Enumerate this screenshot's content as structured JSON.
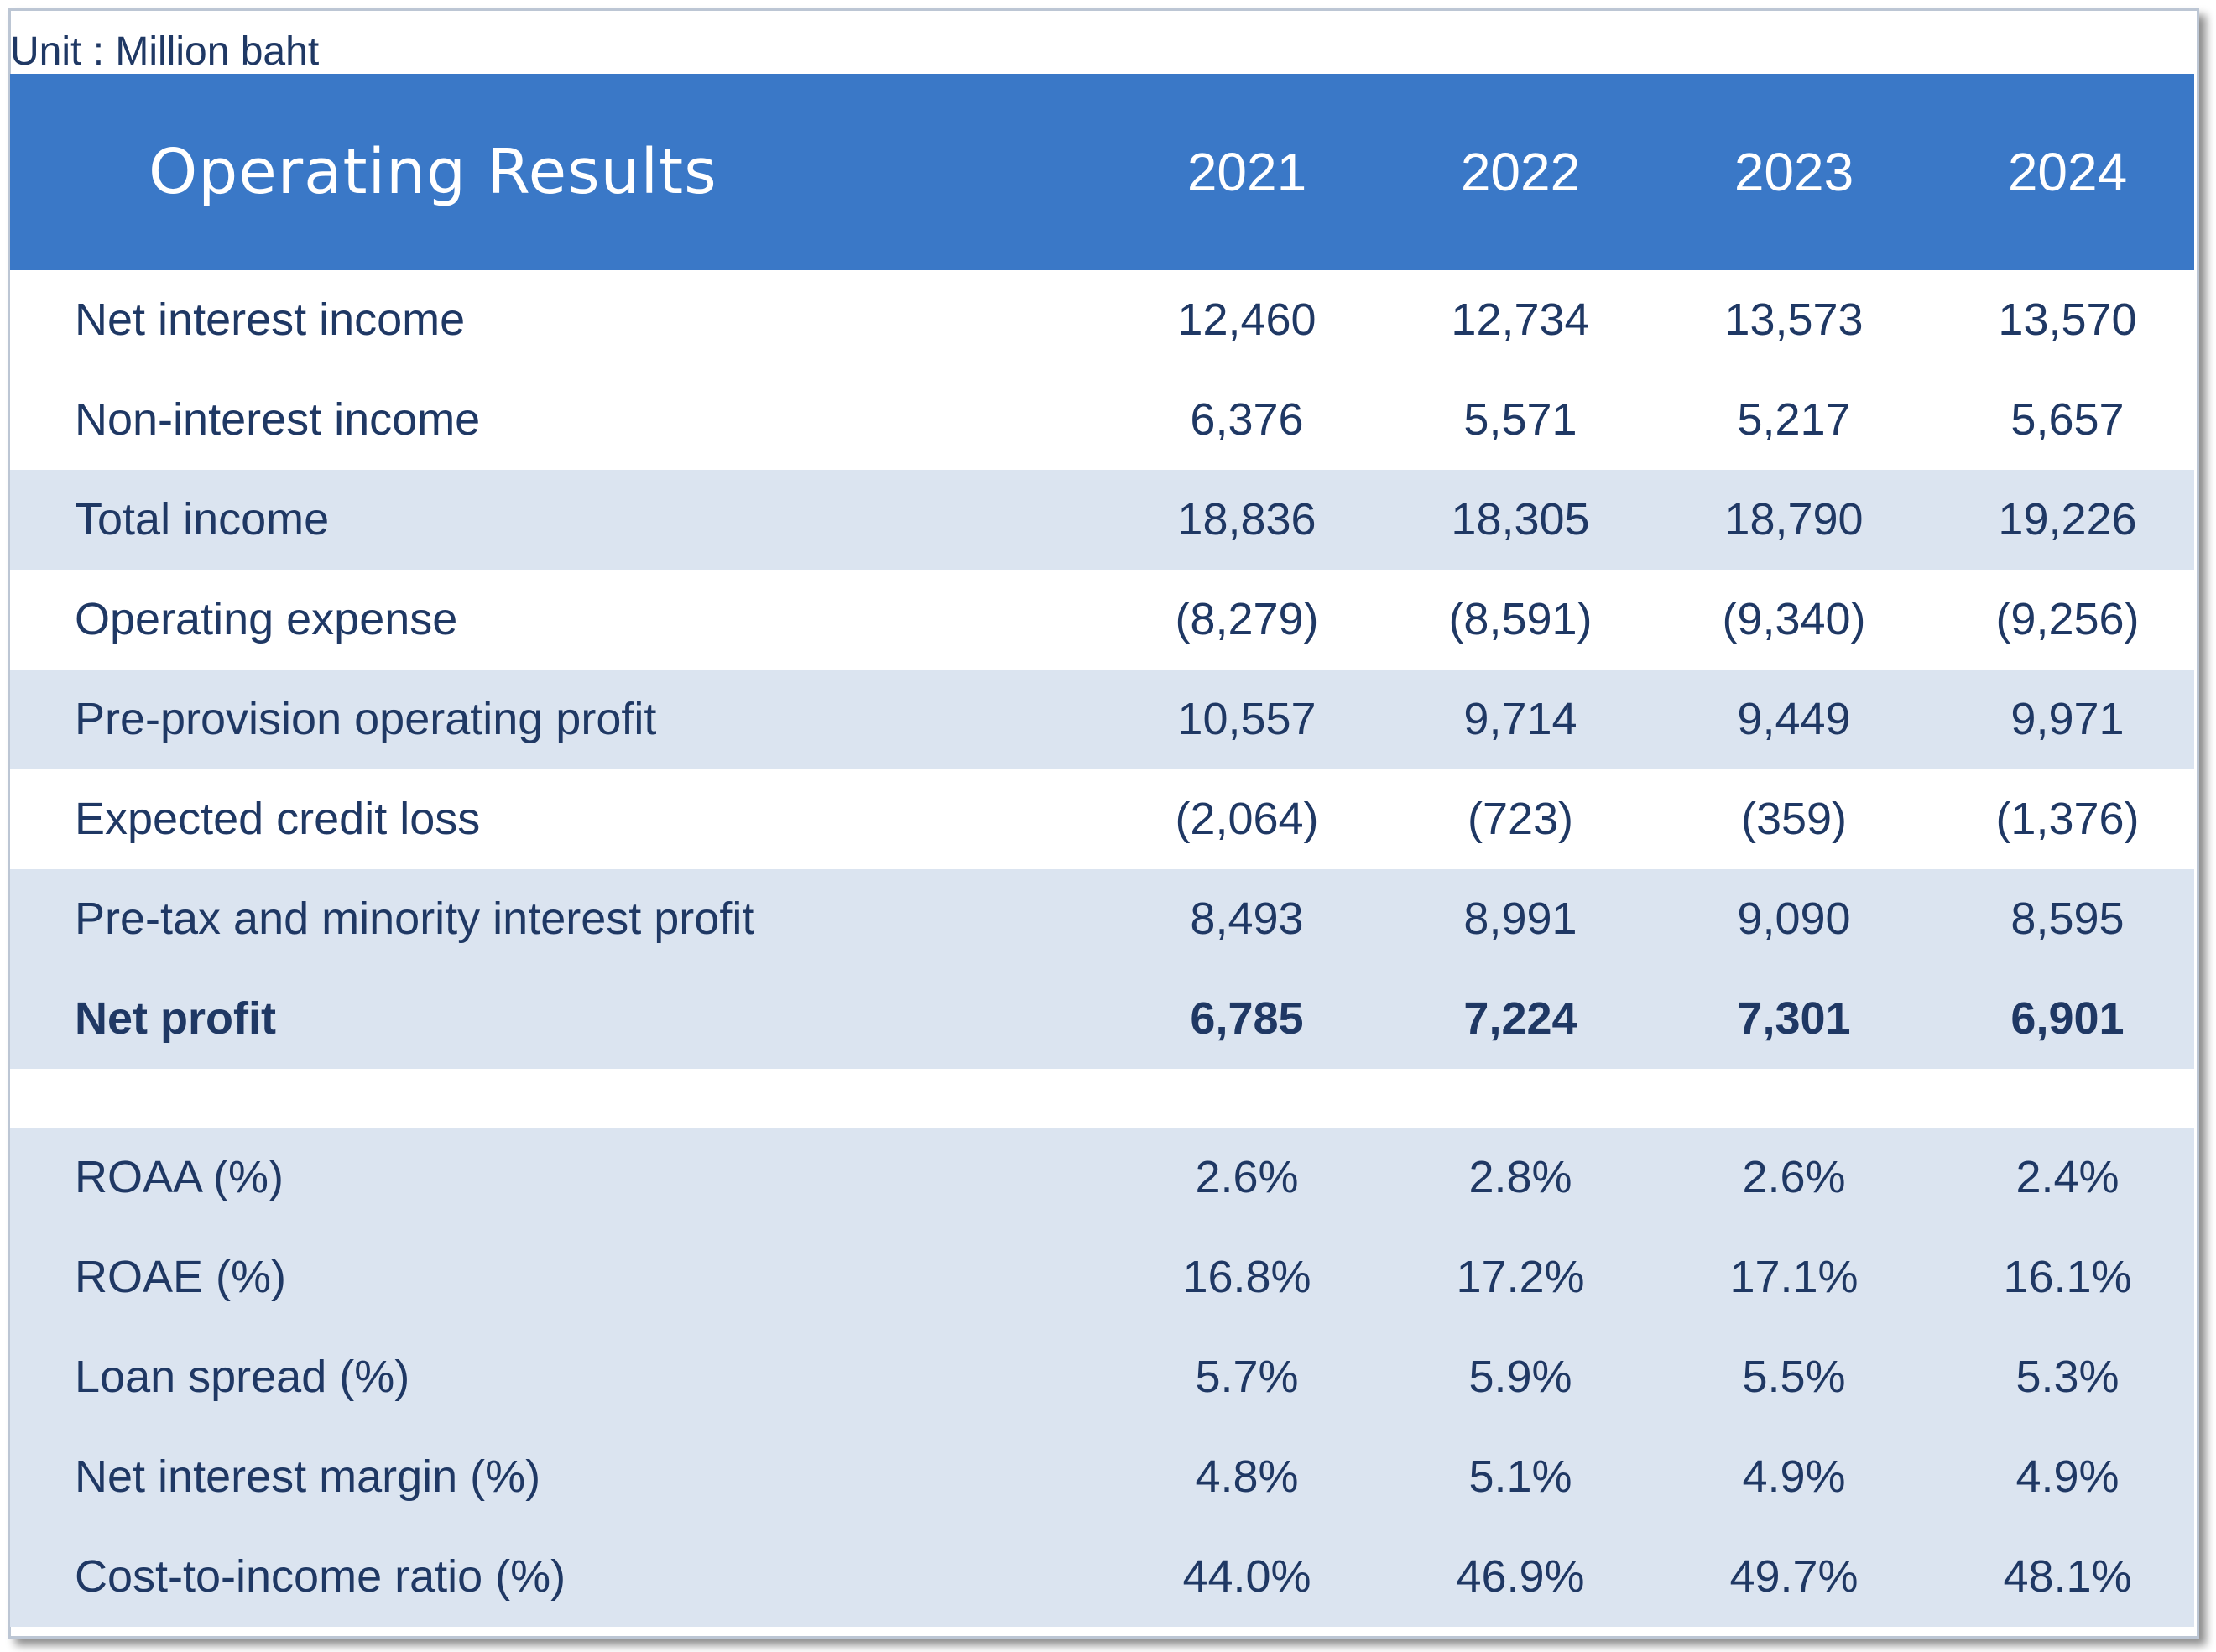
{
  "unit_label": "Unit : Million baht",
  "table": {
    "title": "Operating Results",
    "years": [
      "2021",
      "2022",
      "2023",
      "2024"
    ],
    "rows": [
      {
        "label": "Net interest income",
        "values": [
          "12,460",
          "12,734",
          "13,573",
          "13,570"
        ]
      },
      {
        "label": "Non-interest income",
        "values": [
          "6,376",
          "5,571",
          "5,217",
          "5,657"
        ]
      },
      {
        "label": "Total income",
        "values": [
          "18,836",
          "18,305",
          "18,790",
          "19,226"
        ]
      },
      {
        "label": "Operating expense",
        "values": [
          "(8,279)",
          "(8,591)",
          "(9,340)",
          "(9,256)"
        ]
      },
      {
        "label": "Pre-provision operating profit",
        "values": [
          "10,557",
          "9,714",
          "9,449",
          "9,971"
        ]
      },
      {
        "label": "Expected credit loss",
        "values": [
          "(2,064)",
          "(723)",
          "(359)",
          "(1,376)"
        ]
      },
      {
        "label": "Pre-tax and minority interest profit",
        "values": [
          "8,493",
          "8,991",
          "9,090",
          "8,595"
        ]
      },
      {
        "label": "Net profit",
        "values": [
          "6,785",
          "7,224",
          "7,301",
          "6,901"
        ]
      }
    ],
    "ratios": [
      {
        "label": "ROAA (%)",
        "values": [
          "2.6%",
          "2.8%",
          "2.6%",
          "2.4%"
        ]
      },
      {
        "label": "ROAE (%)",
        "values": [
          "16.8%",
          "17.2%",
          "17.1%",
          "16.1%"
        ]
      },
      {
        "label": "Loan spread (%)",
        "values": [
          "5.7%",
          "5.9%",
          "5.5%",
          "5.3%"
        ]
      },
      {
        "label": "Net interest margin (%)",
        "values": [
          "4.8%",
          "5.1%",
          "4.9%",
          "4.9%"
        ]
      },
      {
        "label": "Cost-to-income ratio (%)",
        "values": [
          "44.0%",
          "46.9%",
          "49.7%",
          "48.1%"
        ]
      }
    ]
  },
  "colors": {
    "header_bg": "#3a78c7",
    "shade_bg": "#dbe4f0",
    "text": "#1f3864"
  }
}
